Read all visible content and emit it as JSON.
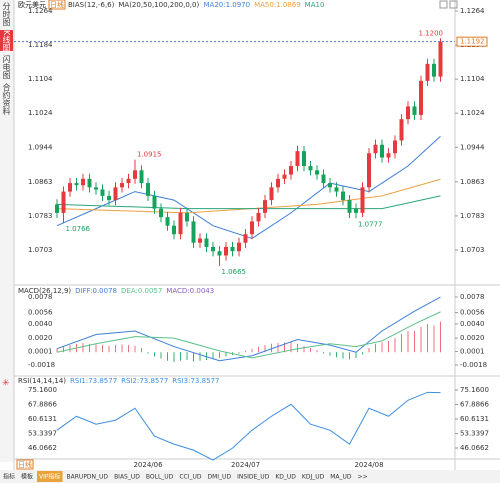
{
  "header": {
    "title": "欧元美元",
    "period": "日线",
    "indicators": [
      "BIAS(12,-6,6)",
      "MA(20,50,100,200,0,0)"
    ]
  },
  "sidebar": [
    "分时图",
    "K线图",
    "闪电图",
    "合约资料"
  ],
  "x_axis": {
    "period": "日线",
    "labels": [
      {
        "at": 14,
        "label": "2024/06"
      },
      {
        "at": 29,
        "label": "2024/07"
      },
      {
        "at": 48,
        "label": "2024/08"
      }
    ]
  },
  "tabs": [
    "指标",
    "模板",
    "VIP指标",
    "BARUPDN_UD",
    "BIAS_UD",
    "BOLL_UD",
    "CCI_UD",
    "DMI_UD",
    "INSIDE_UD",
    "KD_UD",
    "KDJ_UD",
    "MA_UD",
    ">>"
  ],
  "chart_data": [
    {
      "type": "candlestick",
      "up_color": "#e5393e",
      "down_color": "#15a35c",
      "ylim": [
        1.06254,
        1.12687
      ],
      "yticks": [
        1.1264,
        1.1184,
        1.1104,
        1.1024,
        1.0944,
        1.0863,
        1.0783,
        1.0703
      ],
      "last": {
        "value": 1.1192,
        "label": "1.1192"
      },
      "open": [
        1.081,
        1.079,
        1.084,
        1.086,
        1.0855,
        1.087,
        1.085,
        1.0845,
        1.083,
        1.082,
        1.085,
        1.086,
        1.087,
        1.089,
        1.086,
        1.083,
        1.08,
        1.078,
        1.076,
        1.074,
        1.079,
        1.077,
        1.072,
        1.073,
        1.071,
        1.07,
        1.069,
        1.071,
        1.07,
        1.072,
        1.074,
        1.077,
        1.079,
        1.082,
        1.085,
        1.087,
        1.088,
        1.09,
        1.0935,
        1.09,
        1.089,
        1.088,
        1.086,
        1.085,
        1.084,
        1.082,
        1.08,
        1.079,
        1.085,
        1.093,
        1.095,
        1.092,
        1.093,
        1.096,
        1.101,
        1.104,
        1.102,
        1.11,
        1.114,
        1.111
      ],
      "close": [
        1.079,
        1.084,
        1.086,
        1.0855,
        1.087,
        1.085,
        1.0845,
        1.083,
        1.082,
        1.085,
        1.086,
        1.087,
        1.089,
        1.086,
        1.083,
        1.08,
        1.078,
        1.076,
        1.074,
        1.079,
        1.077,
        1.072,
        1.073,
        1.071,
        1.07,
        1.069,
        1.071,
        1.07,
        1.072,
        1.074,
        1.077,
        1.079,
        1.082,
        1.085,
        1.087,
        1.088,
        1.09,
        1.0935,
        1.09,
        1.089,
        1.088,
        1.086,
        1.085,
        1.084,
        1.082,
        1.079,
        1.079,
        1.085,
        1.093,
        1.095,
        1.092,
        1.093,
        1.096,
        1.101,
        1.104,
        1.102,
        1.11,
        1.114,
        1.111,
        1.1192
      ],
      "high": [
        1.0822,
        1.0852,
        1.0872,
        1.0872,
        1.0882,
        1.0882,
        1.0862,
        1.0857,
        1.0842,
        1.0862,
        1.0872,
        1.0882,
        1.0915,
        1.0902,
        1.0872,
        1.0842,
        1.0812,
        1.0792,
        1.0772,
        1.0802,
        1.0802,
        1.0782,
        1.0742,
        1.0742,
        1.0722,
        1.0712,
        1.0722,
        1.0722,
        1.0732,
        1.0752,
        1.0782,
        1.0802,
        1.0832,
        1.0862,
        1.0882,
        1.0892,
        1.0912,
        1.0948,
        1.0947,
        1.0912,
        1.0902,
        1.0892,
        1.0872,
        1.0862,
        1.0852,
        1.0832,
        1.0812,
        1.0862,
        1.0942,
        1.0962,
        1.0962,
        1.0942,
        1.0972,
        1.1022,
        1.1052,
        1.1052,
        1.1112,
        1.1152,
        1.1152,
        1.12
      ],
      "low": [
        1.0778,
        1.0766,
        1.0828,
        1.0843,
        1.0843,
        1.0838,
        1.0833,
        1.0818,
        1.0808,
        1.0808,
        1.0838,
        1.0848,
        1.0858,
        1.0848,
        1.0818,
        1.0788,
        1.0768,
        1.0748,
        1.0728,
        1.0728,
        1.0758,
        1.0708,
        1.0708,
        1.0698,
        1.0688,
        1.0665,
        1.0678,
        1.0688,
        1.0688,
        1.0708,
        1.0728,
        1.0758,
        1.0778,
        1.0808,
        1.0838,
        1.0858,
        1.0868,
        1.0888,
        1.0888,
        1.0878,
        1.0868,
        1.0848,
        1.0838,
        1.0828,
        1.0808,
        1.0778,
        1.0777,
        1.078,
        1.0838,
        1.0918,
        1.0908,
        1.0908,
        1.0918,
        1.0948,
        1.0998,
        1.1008,
        1.1008,
        1.1088,
        1.1098,
        1.1098
      ],
      "series": [
        {
          "name": "MA20:1.0970",
          "color": "#3d7fd9",
          "x": [
            0,
            6,
            12,
            18,
            24,
            30,
            36,
            42,
            48,
            54,
            59
          ],
          "values": [
            1.076,
            1.08,
            1.084,
            1.082,
            1.076,
            1.073,
            1.079,
            1.086,
            1.084,
            1.09,
            1.097
          ]
        },
        {
          "name": "MA50:1.0869",
          "color": "#f0a040",
          "x": [
            0,
            20,
            40,
            50,
            59
          ],
          "values": [
            1.08,
            1.079,
            1.081,
            1.083,
            1.0869
          ]
        },
        {
          "name": "MA10",
          "color": "#2aa57a",
          "x": [
            0,
            20,
            40,
            50,
            59
          ],
          "values": [
            1.081,
            1.08,
            1.08,
            1.08,
            1.083
          ]
        }
      ],
      "annotations": [
        {
          "at": 59,
          "value": 1.12,
          "label": "1.1200",
          "color": "#e5393e"
        },
        {
          "at": 12,
          "value": 1.0915,
          "label": "1.0915",
          "color": "#e5393e"
        },
        {
          "at": 1,
          "value": 1.0766,
          "label": "1.0766",
          "color": "#15a35c"
        },
        {
          "at": 25,
          "value": 1.0665,
          "label": "1.0665",
          "color": "#15a35c"
        },
        {
          "at": 46,
          "value": 1.0777,
          "label": "1.0777",
          "color": "#15a35c"
        }
      ]
    },
    {
      "type": "macd",
      "title": "MACD(26,12,9)",
      "ylim": [
        -0.00279,
        0.00879
      ],
      "yticks": [
        0.0078,
        0.0056,
        {
          "value": 0.004,
          "label": "0.0040"
        },
        {
          "value": 0.002,
          "label": "0.0020"
        },
        0.0001,
        -0.0018
      ],
      "bars": {
        "name": "MACD:0.0043",
        "color": "#8a5cc7",
        "up_color": "#ef6f78",
        "down_color": "#36b26b",
        "values": [
          0.0005,
          0.0008,
          0.001,
          0.0012,
          0.0013,
          0.0012,
          0.0011,
          0.001,
          0.0009,
          0.001,
          0.0011,
          0.001,
          0.0009,
          0.0006,
          -0.0002,
          -0.0006,
          -0.0009,
          -0.0012,
          -0.0014,
          -0.0012,
          -0.0011,
          -0.0013,
          -0.0012,
          -0.0011,
          -0.001,
          -0.0008,
          -0.0006,
          -0.0004,
          -0.0002,
          0.0002,
          0.0005,
          0.0008,
          0.001,
          0.0012,
          0.0013,
          0.0014,
          0.0015,
          0.0012,
          0.0009,
          0.0006,
          0.0003,
          -0.0002,
          -0.0005,
          -0.0007,
          -0.0009,
          -0.001,
          -0.0008,
          -0.0003,
          0.0006,
          0.0012,
          0.0014,
          0.0016,
          0.002,
          0.0026,
          0.003,
          0.003,
          0.0036,
          0.004,
          0.0038,
          0.0043
        ]
      },
      "series": [
        {
          "name": "DIFF:0.0078",
          "color": "#3d7fd9",
          "x": [
            0,
            6,
            12,
            18,
            25,
            30,
            37,
            42,
            46,
            50,
            55,
            59
          ],
          "values": [
            0.0005,
            0.0025,
            0.003,
            0.0008,
            -0.0012,
            -0.0005,
            0.0018,
            0.001,
            0.0,
            0.003,
            0.0058,
            0.0078
          ]
        },
        {
          "name": "DEA:0.0057",
          "color": "#5cc08a",
          "x": [
            0,
            6,
            12,
            18,
            25,
            30,
            37,
            42,
            46,
            50,
            55,
            59
          ],
          "values": [
            0.0,
            0.0012,
            0.0022,
            0.002,
            0.0002,
            -0.0008,
            0.0005,
            0.0012,
            0.0008,
            0.0016,
            0.004,
            0.0057
          ]
        }
      ]
    },
    {
      "type": "line",
      "title": "RSI(14,14,14)",
      "ylim": [
        41.05,
        80.18
      ],
      "yticks": [
        {
          "value": 75.16,
          "label": "75.1600"
        },
        67.8866,
        60.6131,
        53.3397,
        46.0662
      ],
      "series": [
        {
          "name": "RSI1:73.8577",
          "color": "#3d8fe0",
          "x": [
            0,
            3,
            6,
            9,
            12,
            15,
            18,
            21,
            24,
            27,
            30,
            33,
            36,
            39,
            42,
            45,
            48,
            51,
            54,
            57,
            59
          ],
          "values": [
            55,
            62,
            58,
            60,
            66,
            52,
            48,
            45,
            40,
            46,
            55,
            62,
            68,
            58,
            55,
            48,
            66,
            62,
            70,
            74,
            73.8577
          ]
        }
      ],
      "legend_extra": [
        {
          "name": "RSI2:73.8577",
          "color": "#3d8fe0"
        },
        {
          "name": "RSI3:73.8577",
          "color": "#3d8fe0"
        }
      ]
    }
  ]
}
